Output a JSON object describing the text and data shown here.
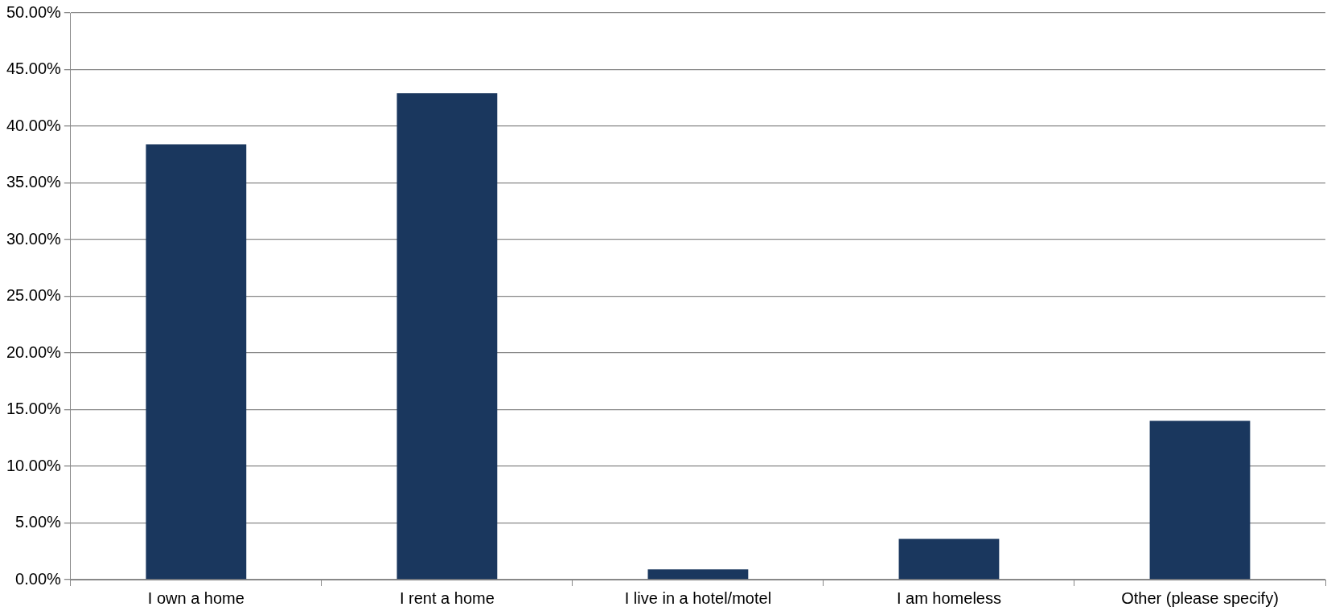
{
  "chart_data": {
    "type": "bar",
    "categories": [
      "I own a home",
      "I rent a home",
      "I live in a hotel/motel",
      "I am homeless",
      "Other (please specify)"
    ],
    "values": [
      38.4,
      42.9,
      0.9,
      3.6,
      14.0
    ],
    "color": "#1a375e",
    "ylim": [
      0,
      50
    ],
    "yticks": [
      {
        "value": 0,
        "label": "0.00%"
      },
      {
        "value": 5,
        "label": "5.00%"
      },
      {
        "value": 10,
        "label": "10.00%"
      },
      {
        "value": 15,
        "label": "15.00%"
      },
      {
        "value": 20,
        "label": "20.00%"
      },
      {
        "value": 25,
        "label": "25.00%"
      },
      {
        "value": 30,
        "label": "30.00%"
      },
      {
        "value": 35,
        "label": "35.00%"
      },
      {
        "value": 40,
        "label": "40.00%"
      },
      {
        "value": 45,
        "label": "45.00%"
      },
      {
        "value": 50,
        "label": "50.00%"
      }
    ],
    "grid": "y",
    "legend": false
  }
}
